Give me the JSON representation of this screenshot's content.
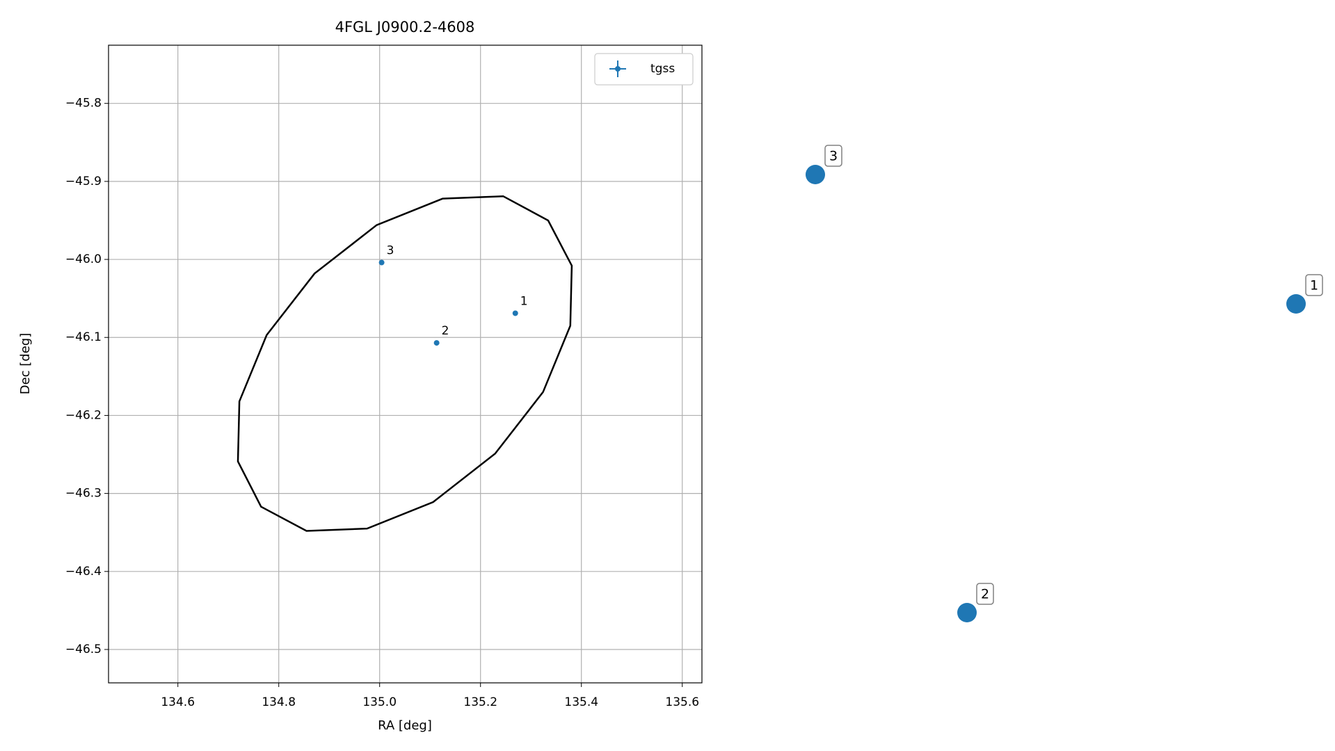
{
  "chart_data": [
    {
      "type": "scatter",
      "title": "4FGL J0900.2-4608",
      "x_label": "RA [deg]",
      "y_label": "Dec [deg]",
      "series": [
        {
          "name": "tgss",
          "color": "#1f77b4",
          "x": [
            135.269,
            135.113,
            135.004
          ],
          "values": [
            -46.069,
            -46.107,
            -46.004
          ],
          "labels": [
            "1",
            "2",
            "3"
          ]
        }
      ],
      "ellipse": {
        "color": "#000000",
        "ra": [
          135.334,
          135.381,
          135.378,
          135.324,
          135.229,
          135.106,
          134.975,
          134.855,
          134.765,
          134.719,
          134.722,
          134.776,
          134.871,
          134.994,
          135.125,
          135.245
        ],
        "dec": [
          -45.95,
          -46.008,
          -46.085,
          -46.17,
          -46.249,
          -46.311,
          -46.345,
          -46.348,
          -46.317,
          -46.259,
          -46.182,
          -46.097,
          -46.018,
          -45.956,
          -45.922,
          -45.919
        ]
      },
      "xlim": [
        134.4625,
        135.639
      ],
      "ylim": [
        -46.5428,
        -45.7254
      ],
      "xticks": [
        134.6,
        134.8,
        {
          "value": 135,
          "label": "135.0"
        },
        135.2,
        135.4,
        135.6
      ],
      "yticks": [
        {
          "value": -45.8,
          "label": "−45.8"
        },
        {
          "value": -45.9,
          "label": "−45.9"
        },
        {
          "value": -46,
          "label": "−46.0"
        },
        {
          "value": -46.1,
          "label": "−46.1"
        },
        {
          "value": -46.2,
          "label": "−46.2"
        },
        {
          "value": -46.3,
          "label": "−46.3"
        },
        {
          "value": -46.4,
          "label": "−46.4"
        },
        {
          "value": -46.5,
          "label": "−46.5"
        }
      ],
      "grid": true,
      "legend": "upper right"
    },
    {
      "type": "labeled-points",
      "color": "#1f77b4",
      "labels": [
        "1",
        "2",
        "3"
      ]
    }
  ]
}
